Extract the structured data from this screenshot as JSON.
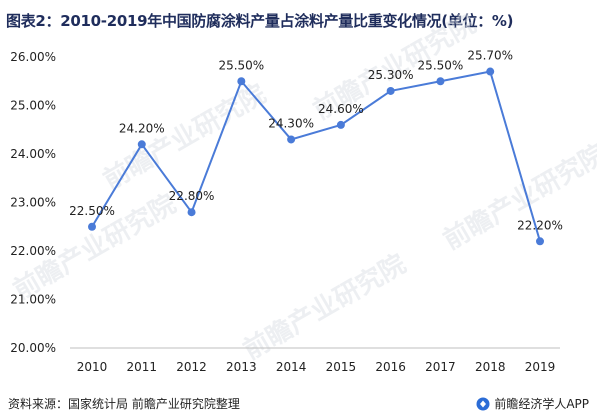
{
  "title": "图表2：2010-2019年中国防腐涂料产量占涂料产量比重变化情况(单位：%)",
  "source": "资料来源：国家统计局 前瞻产业研究院整理",
  "brand": "前瞻经济学人APP",
  "watermark": "前瞻产业研究院",
  "colors": {
    "line": "#4a7bd8",
    "title": "#1f2d5c",
    "axis": "#bfbfbf"
  },
  "chart_data": {
    "type": "line",
    "categories": [
      "2010",
      "2011",
      "2012",
      "2013",
      "2014",
      "2015",
      "2016",
      "2017",
      "2018",
      "2019"
    ],
    "series": [
      {
        "values": [
          22.5,
          24.2,
          22.8,
          25.5,
          24.3,
          24.6,
          25.3,
          25.5,
          25.7,
          22.2
        ],
        "data_labels": [
          "22.50%",
          "24.20%",
          "22.80%",
          "25.50%",
          "24.30%",
          "24.60%",
          "25.30%",
          "25.50%",
          "25.70%",
          "22.20%"
        ]
      }
    ],
    "y_ticks": [
      20,
      21,
      22,
      23,
      24,
      25,
      26
    ],
    "y_tick_labels": [
      "20.00%",
      "21.00%",
      "22.00%",
      "23.00%",
      "24.00%",
      "25.00%",
      "26.00%"
    ],
    "ylim": [
      20,
      26
    ],
    "xlabel": "",
    "ylabel": "",
    "grid": false,
    "legend": "none"
  }
}
